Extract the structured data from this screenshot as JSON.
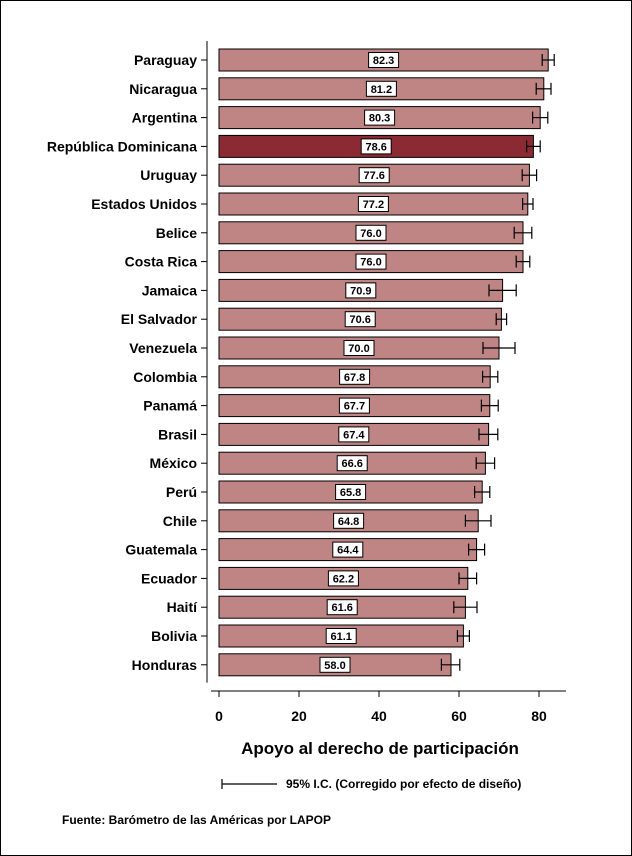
{
  "chart_data": {
    "type": "bar",
    "orientation": "horizontal",
    "xlabel": "Apoyo al derecho de participación",
    "xlim": [
      0,
      88
    ],
    "xticks": [
      0,
      20,
      40,
      60,
      80
    ],
    "categories": [
      "Paraguay",
      "Nicaragua",
      "Argentina",
      "República Dominicana",
      "Uruguay",
      "Estados Unidos",
      "Belice",
      "Costa Rica",
      "Jamaica",
      "El Salvador",
      "Venezuela",
      "Colombia",
      "Panamá",
      "Brasil",
      "México",
      "Perú",
      "Chile",
      "Guatemala",
      "Ecuador",
      "Haití",
      "Bolivia",
      "Honduras"
    ],
    "values": [
      82.3,
      81.2,
      80.3,
      78.6,
      77.6,
      77.2,
      76.0,
      76.0,
      70.9,
      70.6,
      70.0,
      67.8,
      67.7,
      67.4,
      66.6,
      65.8,
      64.8,
      64.4,
      62.2,
      61.6,
      61.1,
      58.0
    ],
    "value_labels": [
      "82.3",
      "81.2",
      "80.3",
      "78.6",
      "77.6",
      "77.2",
      "76.0",
      "76.0",
      "70.9",
      "70.6",
      "70.0",
      "67.8",
      "67.7",
      "67.4",
      "66.6",
      "65.8",
      "64.8",
      "64.4",
      "62.2",
      "61.6",
      "61.1",
      "58.0"
    ],
    "ci_lower": [
      80.8,
      79.3,
      78.4,
      76.9,
      75.8,
      75.9,
      73.8,
      74.3,
      67.5,
      69.3,
      66.0,
      65.9,
      65.6,
      65.0,
      64.3,
      63.9,
      61.6,
      62.4,
      60.0,
      58.7,
      59.6,
      55.6
    ],
    "ci_upper": [
      83.8,
      83.0,
      82.2,
      80.3,
      79.4,
      78.5,
      78.2,
      77.7,
      74.3,
      71.9,
      74.0,
      69.7,
      69.8,
      69.7,
      68.9,
      67.7,
      68.0,
      66.4,
      64.4,
      64.5,
      62.6,
      60.2
    ],
    "highlight_index": 3,
    "colors": {
      "bar": "#bf8585",
      "highlight": "#8b2a33",
      "edge": "#000000"
    },
    "legend": {
      "label": "95% I.C. (Corregido por efecto de diseño)",
      "placement": "bottom"
    },
    "source": "Fuente: Barómetro de las Américas por LAPOP"
  }
}
